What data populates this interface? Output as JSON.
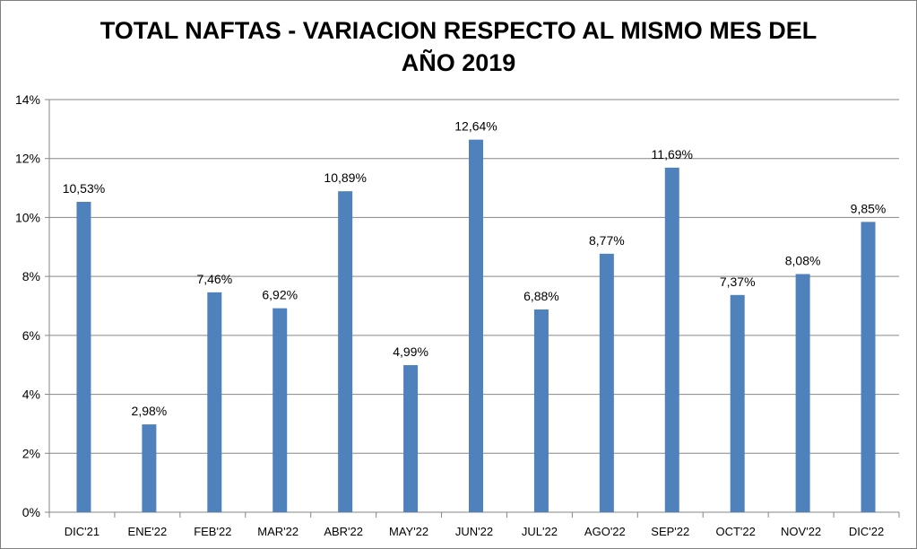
{
  "chart_data": {
    "type": "bar",
    "title_line1": "TOTAL NAFTAS - VARIACION RESPECTO AL MISMO MES DEL",
    "title_line2": "AÑO 2019",
    "categories": [
      "DIC'21",
      "ENE'22",
      "FEB'22",
      "MAR'22",
      "ABR'22",
      "MAY'22",
      "JUN'22",
      "JUL'22",
      "AGO'22",
      "SEP'22",
      "OCT'22",
      "NOV'22",
      "DIC'22"
    ],
    "values": [
      10.53,
      2.98,
      7.46,
      6.92,
      10.89,
      4.99,
      12.64,
      6.88,
      8.77,
      11.69,
      7.37,
      8.08,
      9.85
    ],
    "data_labels": [
      "10,53%",
      "2,98%",
      "7,46%",
      "6,92%",
      "10,89%",
      "4,99%",
      "12,64%",
      "6,88%",
      "8,77%",
      "11,69%",
      "7,37%",
      "8,08%",
      "9,85%"
    ],
    "y_ticks": [
      0,
      2,
      4,
      6,
      8,
      10,
      12,
      14
    ],
    "y_tick_labels": [
      "0%",
      "2%",
      "4%",
      "6%",
      "8%",
      "10%",
      "12%",
      "14%"
    ],
    "ylim": [
      0,
      14
    ],
    "xlabel": "",
    "ylabel": "",
    "grid": true,
    "legend": "none",
    "bar_color": "#4f81bd"
  }
}
